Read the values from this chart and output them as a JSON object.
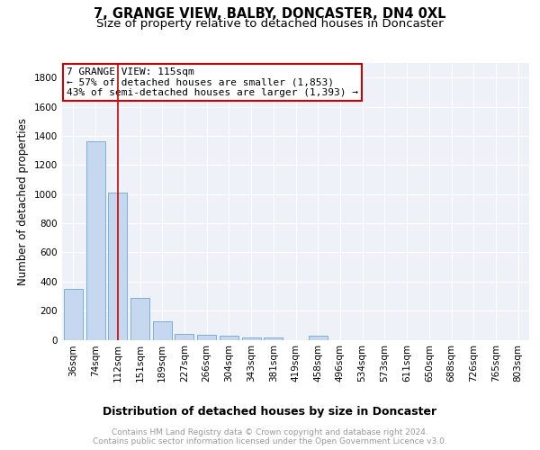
{
  "title": "7, GRANGE VIEW, BALBY, DONCASTER, DN4 0XL",
  "subtitle": "Size of property relative to detached houses in Doncaster",
  "xlabel": "Distribution of detached houses by size in Doncaster",
  "ylabel": "Number of detached properties",
  "categories": [
    "36sqm",
    "74sqm",
    "112sqm",
    "151sqm",
    "189sqm",
    "227sqm",
    "266sqm",
    "304sqm",
    "343sqm",
    "381sqm",
    "419sqm",
    "458sqm",
    "496sqm",
    "534sqm",
    "573sqm",
    "611sqm",
    "650sqm",
    "688sqm",
    "726sqm",
    "765sqm",
    "803sqm"
  ],
  "values": [
    350,
    1360,
    1010,
    285,
    125,
    40,
    37,
    28,
    18,
    15,
    0,
    28,
    0,
    0,
    0,
    0,
    0,
    0,
    0,
    0,
    0
  ],
  "bar_color": "#c5d8f0",
  "bar_edge_color": "#7bafd4",
  "vline_x_index": 2,
  "vline_color": "#cc0000",
  "annotation_line1": "7 GRANGE VIEW: 115sqm",
  "annotation_line2": "← 57% of detached houses are smaller (1,853)",
  "annotation_line3": "43% of semi-detached houses are larger (1,393) →",
  "ylim": [
    0,
    1900
  ],
  "yticks": [
    0,
    200,
    400,
    600,
    800,
    1000,
    1200,
    1400,
    1600,
    1800
  ],
  "background_color": "#ffffff",
  "plot_bg_color": "#eef2f8",
  "grid_color": "#ffffff",
  "footer_text": "Contains HM Land Registry data © Crown copyright and database right 2024.\nContains public sector information licensed under the Open Government Licence v3.0.",
  "title_fontsize": 10.5,
  "subtitle_fontsize": 9.5,
  "xlabel_fontsize": 9,
  "ylabel_fontsize": 8.5,
  "tick_fontsize": 7.5,
  "annotation_fontsize": 8
}
